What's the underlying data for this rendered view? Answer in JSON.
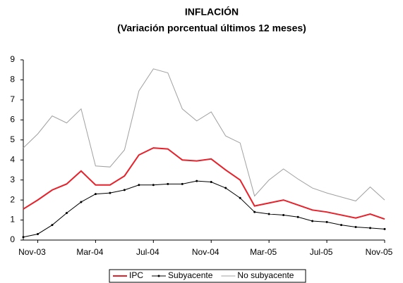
{
  "chart_data": {
    "type": "line",
    "title": "INFLACIÓN",
    "subtitle": "(Variación porcentual últimos 12 meses)",
    "categories": [
      null,
      "Nov-03",
      null,
      null,
      null,
      "Mar-04",
      null,
      null,
      null,
      "Jul-04",
      null,
      null,
      null,
      "Nov-04",
      null,
      null,
      null,
      "Mar-05",
      null,
      null,
      null,
      "Jul-05",
      null,
      null,
      null,
      "Nov-05"
    ],
    "series": [
      {
        "name": "IPC",
        "color": "#e8202a",
        "values": [
          1.55,
          2.0,
          2.5,
          2.8,
          3.45,
          2.75,
          2.75,
          3.2,
          4.25,
          4.6,
          4.55,
          4.0,
          3.95,
          4.05,
          3.5,
          3.0,
          1.7,
          1.85,
          2.0,
          1.75,
          1.5,
          1.4,
          1.25,
          1.1,
          1.3,
          1.05
        ]
      },
      {
        "name": "Subyacente",
        "color": "#000000",
        "values": [
          0.15,
          0.3,
          0.75,
          1.35,
          1.9,
          2.3,
          2.35,
          2.5,
          2.75,
          2.75,
          2.8,
          2.8,
          2.95,
          2.9,
          2.6,
          2.1,
          1.4,
          1.3,
          1.25,
          1.15,
          0.95,
          0.9,
          0.75,
          0.65,
          0.6,
          0.55
        ]
      },
      {
        "name": "No subyacente",
        "color": "#a0a0a0",
        "values": [
          4.6,
          5.3,
          6.2,
          5.85,
          6.55,
          3.7,
          3.65,
          4.5,
          7.45,
          8.55,
          8.35,
          6.55,
          5.95,
          6.4,
          5.2,
          4.85,
          2.2,
          3.0,
          3.55,
          3.05,
          2.6,
          2.35,
          2.15,
          1.95,
          2.65,
          2.0
        ]
      }
    ],
    "ylim": [
      0,
      9
    ],
    "yticks": [
      0,
      1,
      2,
      3,
      4,
      5,
      6,
      7,
      8,
      9
    ],
    "grid": false
  }
}
